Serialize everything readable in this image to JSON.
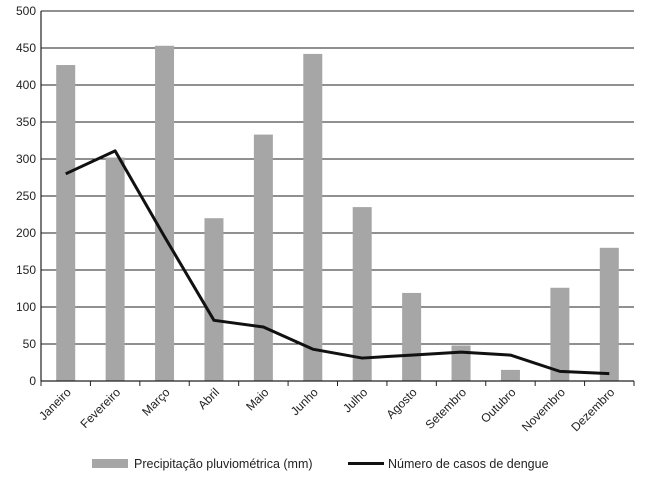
{
  "chart_data": {
    "type": "bar",
    "categories": [
      "Janeiro",
      "Fevereiro",
      "Março",
      "Abril",
      "Maio",
      "Junho",
      "Julho",
      "Agosto",
      "Setembro",
      "Outubro",
      "Novembro",
      "Dezembro"
    ],
    "ylim": [
      0,
      500
    ],
    "yticks": [
      "0",
      "50",
      "100",
      "150",
      "200",
      "250",
      "300",
      "350",
      "400",
      "450",
      "500"
    ],
    "grid": true,
    "legend_position": "bottom",
    "series": [
      {
        "name": "Precipitação pluviométrica (mm)",
        "type": "bar",
        "color": "#a6a6a6",
        "values": [
          427,
          302,
          453,
          220,
          333,
          442,
          235,
          119,
          48,
          15,
          126,
          180
        ]
      },
      {
        "name": "Número de casos de dengue",
        "type": "line",
        "color": "#111111",
        "values": [
          280,
          311,
          195,
          82,
          73,
          43,
          31,
          35,
          39,
          35,
          13,
          10
        ]
      }
    ]
  }
}
